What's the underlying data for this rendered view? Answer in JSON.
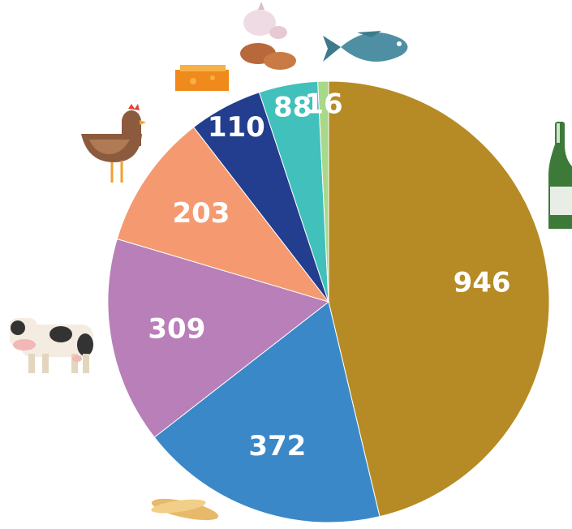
{
  "chart_data": {
    "type": "pie",
    "values": [
      946,
      372,
      309,
      203,
      110,
      88,
      16
    ],
    "colors": [
      "#b68b26",
      "#3b88c8",
      "#b87fb8",
      "#f59a70",
      "#233e8e",
      "#42c0bb",
      "#a8d88a"
    ],
    "start": "top",
    "direction": "clockwise"
  }
}
